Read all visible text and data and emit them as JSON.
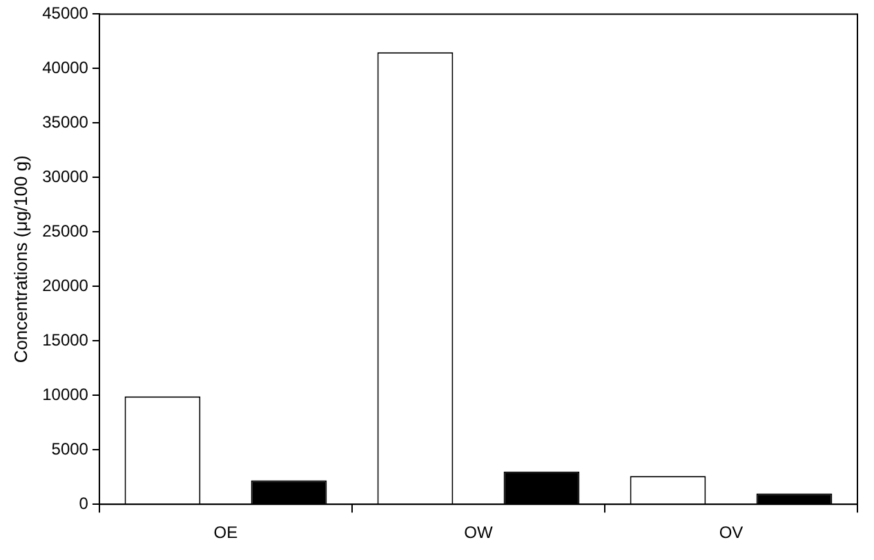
{
  "chart_data": {
    "type": "bar",
    "ylabel": "Concentrations (μg/100 g)",
    "categories": [
      "OE",
      "OW",
      "OV"
    ],
    "series": [
      {
        "color": "#ffffff",
        "values": [
          9900,
          41500,
          2600
        ]
      },
      {
        "color": "#000000",
        "values": [
          2200,
          3000,
          1000
        ]
      }
    ],
    "ylim": [
      0,
      45000
    ],
    "yticks": [
      0,
      5000,
      10000,
      15000,
      20000,
      25000,
      30000,
      35000,
      40000,
      45000
    ],
    "grid": false,
    "legend": false
  }
}
